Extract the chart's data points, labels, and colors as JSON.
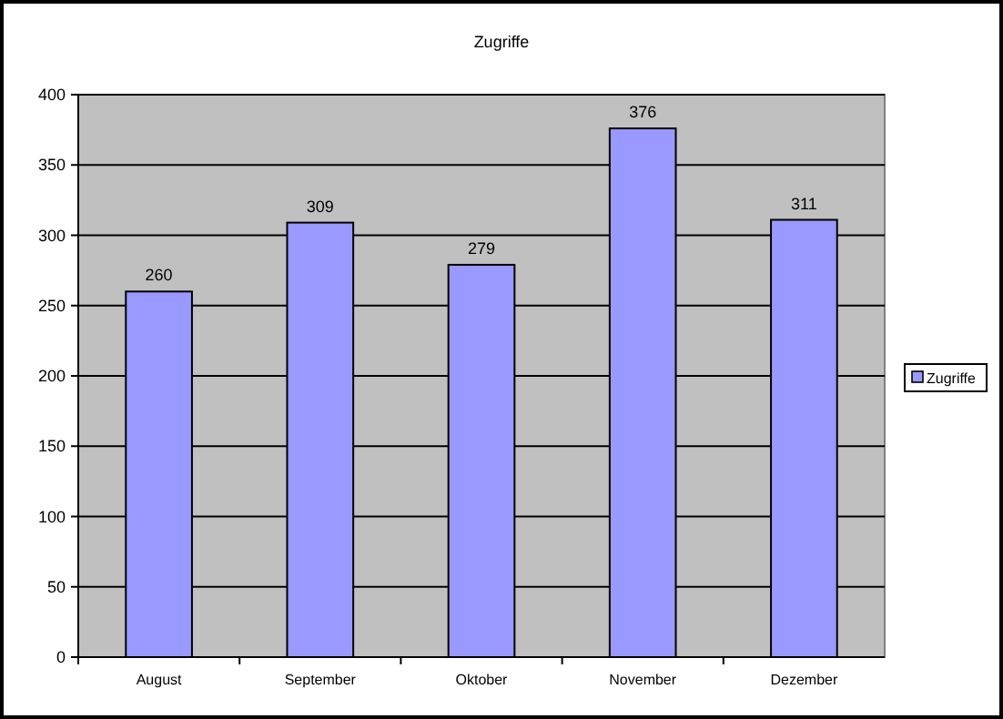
{
  "chart_data": {
    "type": "bar",
    "title": "Zugriffe",
    "categories": [
      "August",
      "September",
      "Oktober",
      "November",
      "Dezember"
    ],
    "series": [
      {
        "name": "Zugriffe",
        "color": "#9999ff",
        "values": [
          260,
          309,
          279,
          376,
          311
        ]
      }
    ],
    "ylim": [
      0,
      400
    ],
    "yticks": [
      0,
      50,
      100,
      150,
      200,
      250,
      300,
      350,
      400
    ],
    "grid": "y",
    "legend": "right",
    "data_labels": true
  }
}
